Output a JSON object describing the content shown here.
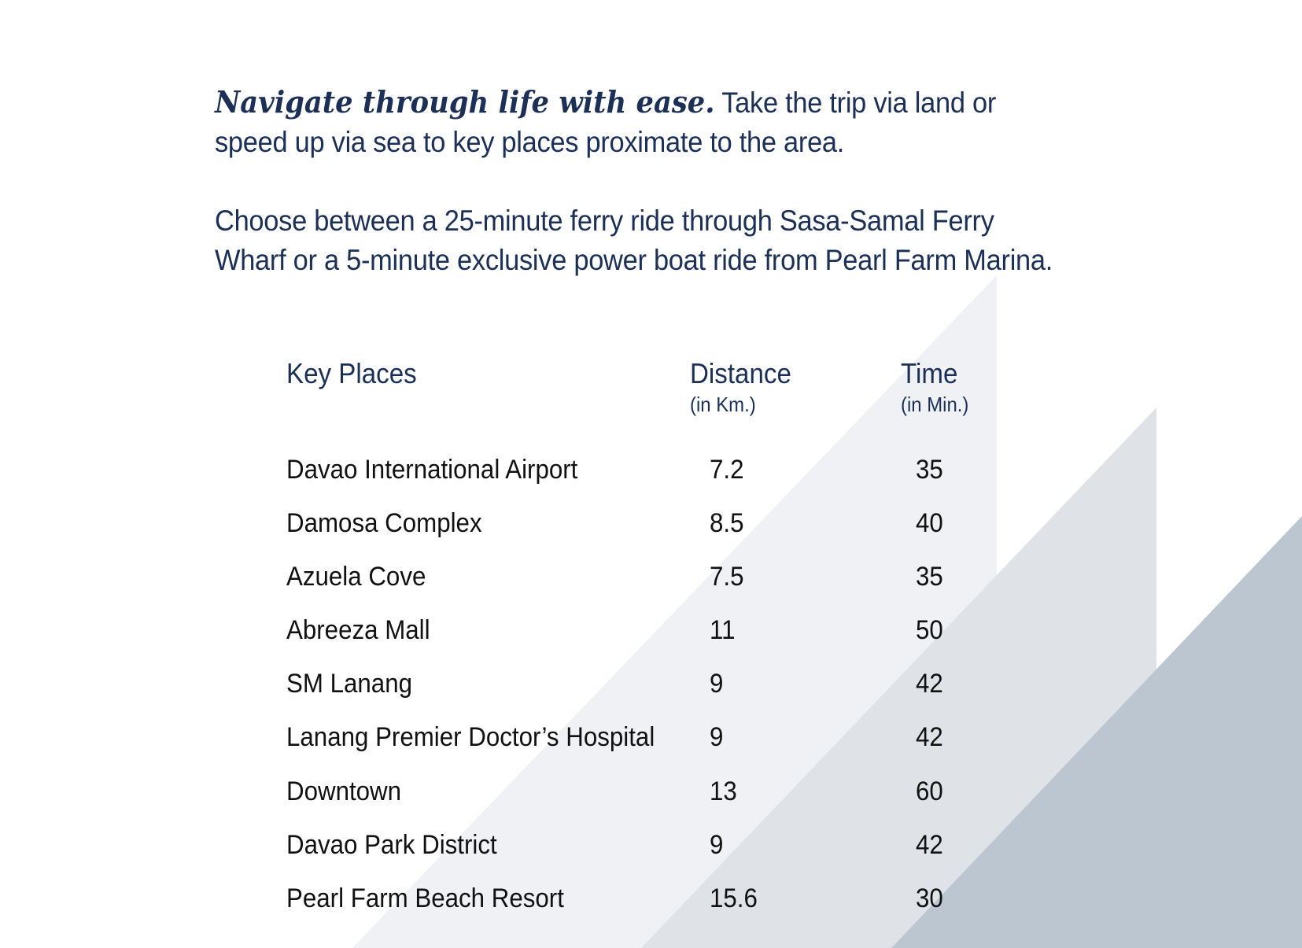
{
  "intro": {
    "lead": "Navigate through life with ease.",
    "rest": " Take the trip via land or speed up via sea to key places proximate to the area.",
    "second": "Choose between a 25-minute ferry ride through Sasa-Samal Ferry Wharf or a 5-minute exclusive power boat ride from Pearl Farm Marina."
  },
  "table": {
    "headers": {
      "place": "Key Places",
      "distance": "Distance",
      "distance_unit": "(in Km.)",
      "time": "Time",
      "time_unit": "(in Min.)"
    },
    "rows": [
      {
        "place": "Davao International Airport",
        "distance": "7.2",
        "time": "35"
      },
      {
        "place": "Damosa Complex",
        "distance": "8.5",
        "time": "40"
      },
      {
        "place": "Azuela Cove",
        "distance": "7.5",
        "time": "35"
      },
      {
        "place": "Abreeza Mall",
        "distance": "11",
        "time": "50"
      },
      {
        "place": "SM Lanang",
        "distance": "9",
        "time": "42"
      },
      {
        "place": "Lanang Premier Doctor’s Hospital",
        "distance": "9",
        "time": "42"
      },
      {
        "place": "Downtown",
        "distance": "13",
        "time": "60"
      },
      {
        "place": "Davao Park District",
        "distance": "9",
        "time": "42"
      },
      {
        "place": "Pearl Farm Beach Resort",
        "distance": "15.6",
        "time": "30"
      }
    ]
  },
  "colors": {
    "text_navy": "#1b2f57",
    "text_dark": "#111111",
    "shape_light": "#eff1f4",
    "shape_mid": "#dfe3e8",
    "shape_dark": "#bcc6d1"
  }
}
